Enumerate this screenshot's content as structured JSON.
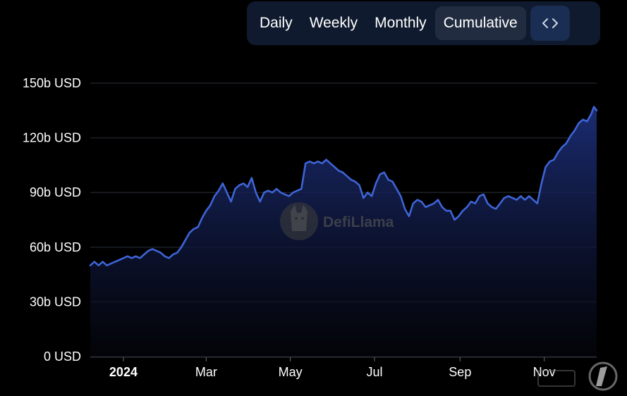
{
  "toolbar": {
    "buttons": [
      {
        "label": "Daily"
      },
      {
        "label": "Weekly"
      },
      {
        "label": "Monthly"
      },
      {
        "label": "Cumulative"
      }
    ],
    "active": "Cumulative",
    "embed_icon": "code-brackets-icon"
  },
  "watermark": {
    "text": "DefiLlama",
    "icon": "llama-logo-icon"
  },
  "colors": {
    "background": "#000000",
    "line": "#3e64d6",
    "fill_top": "#1c2e78",
    "grid": "#1c1f26"
  },
  "chart_data": {
    "type": "area",
    "title": "",
    "xlabel": "",
    "ylabel": "",
    "y_unit": "b USD",
    "ylim": [
      0,
      150
    ],
    "y_ticks": [
      {
        "value": 0,
        "label": "0 USD"
      },
      {
        "value": 30,
        "label": "30b USD"
      },
      {
        "value": 60,
        "label": "60b USD"
      },
      {
        "value": 90,
        "label": "90b USD"
      },
      {
        "value": 120,
        "label": "120b USD"
      },
      {
        "value": 150,
        "label": "150b USD"
      }
    ],
    "x_ticks": [
      {
        "date": "2024-01-01",
        "label": "2024",
        "bold": true
      },
      {
        "date": "2024-03-01",
        "label": "Mar",
        "bold": false
      },
      {
        "date": "2024-05-01",
        "label": "May",
        "bold": false
      },
      {
        "date": "2024-07-01",
        "label": "Jul",
        "bold": false
      },
      {
        "date": "2024-09-01",
        "label": "Sep",
        "bold": false
      },
      {
        "date": "2024-11-01",
        "label": "Nov",
        "bold": false
      }
    ],
    "xlim": [
      "2023-12-08",
      "2024-12-09"
    ],
    "grid": true,
    "legend": "none",
    "series": [
      {
        "points": [
          [
            "2023-12-08",
            50
          ],
          [
            "2023-12-11",
            52
          ],
          [
            "2023-12-14",
            50
          ],
          [
            "2023-12-17",
            52
          ],
          [
            "2023-12-20",
            50
          ],
          [
            "2023-12-23",
            51
          ],
          [
            "2023-12-26",
            52
          ],
          [
            "2023-12-29",
            53
          ],
          [
            "2024-01-01",
            54
          ],
          [
            "2024-01-04",
            55
          ],
          [
            "2024-01-07",
            54
          ],
          [
            "2024-01-10",
            55
          ],
          [
            "2024-01-13",
            54
          ],
          [
            "2024-01-16",
            56
          ],
          [
            "2024-01-19",
            58
          ],
          [
            "2024-01-22",
            59
          ],
          [
            "2024-01-25",
            58
          ],
          [
            "2024-01-28",
            57
          ],
          [
            "2024-01-31",
            55
          ],
          [
            "2024-02-03",
            54
          ],
          [
            "2024-02-06",
            56
          ],
          [
            "2024-02-09",
            57
          ],
          [
            "2024-02-12",
            60
          ],
          [
            "2024-02-15",
            64
          ],
          [
            "2024-02-18",
            68
          ],
          [
            "2024-02-21",
            70
          ],
          [
            "2024-02-24",
            71
          ],
          [
            "2024-02-27",
            76
          ],
          [
            "2024-03-01",
            80
          ],
          [
            "2024-03-04",
            83
          ],
          [
            "2024-03-07",
            88
          ],
          [
            "2024-03-10",
            91
          ],
          [
            "2024-03-13",
            95
          ],
          [
            "2024-03-16",
            90
          ],
          [
            "2024-03-19",
            85
          ],
          [
            "2024-03-22",
            92
          ],
          [
            "2024-03-25",
            94
          ],
          [
            "2024-03-28",
            95
          ],
          [
            "2024-03-31",
            93
          ],
          [
            "2024-04-03",
            98
          ],
          [
            "2024-04-06",
            90
          ],
          [
            "2024-04-09",
            85
          ],
          [
            "2024-04-12",
            90
          ],
          [
            "2024-04-15",
            91
          ],
          [
            "2024-04-18",
            90
          ],
          [
            "2024-04-21",
            92
          ],
          [
            "2024-04-24",
            90
          ],
          [
            "2024-04-27",
            89
          ],
          [
            "2024-04-30",
            88
          ],
          [
            "2024-05-03",
            90
          ],
          [
            "2024-05-06",
            91
          ],
          [
            "2024-05-09",
            92
          ],
          [
            "2024-05-12",
            106
          ],
          [
            "2024-05-15",
            107
          ],
          [
            "2024-05-18",
            106
          ],
          [
            "2024-05-21",
            107
          ],
          [
            "2024-05-24",
            106
          ],
          [
            "2024-05-27",
            108
          ],
          [
            "2024-05-30",
            106
          ],
          [
            "2024-06-02",
            104
          ],
          [
            "2024-06-05",
            102
          ],
          [
            "2024-06-08",
            101
          ],
          [
            "2024-06-11",
            99
          ],
          [
            "2024-06-14",
            97
          ],
          [
            "2024-06-17",
            96
          ],
          [
            "2024-06-20",
            94
          ],
          [
            "2024-06-23",
            87
          ],
          [
            "2024-06-26",
            90
          ],
          [
            "2024-06-29",
            88
          ],
          [
            "2024-07-02",
            95
          ],
          [
            "2024-07-05",
            100
          ],
          [
            "2024-07-08",
            101
          ],
          [
            "2024-07-11",
            97
          ],
          [
            "2024-07-14",
            96
          ],
          [
            "2024-07-17",
            92
          ],
          [
            "2024-07-20",
            88
          ],
          [
            "2024-07-23",
            81
          ],
          [
            "2024-07-26",
            77
          ],
          [
            "2024-07-29",
            84
          ],
          [
            "2024-08-01",
            86
          ],
          [
            "2024-08-04",
            85
          ],
          [
            "2024-08-07",
            82
          ],
          [
            "2024-08-10",
            83
          ],
          [
            "2024-08-13",
            84
          ],
          [
            "2024-08-16",
            86
          ],
          [
            "2024-08-19",
            82
          ],
          [
            "2024-08-22",
            80
          ],
          [
            "2024-08-25",
            80
          ],
          [
            "2024-08-28",
            75
          ],
          [
            "2024-08-31",
            77
          ],
          [
            "2024-09-03",
            80
          ],
          [
            "2024-09-06",
            82
          ],
          [
            "2024-09-09",
            85
          ],
          [
            "2024-09-12",
            84
          ],
          [
            "2024-09-15",
            88
          ],
          [
            "2024-09-18",
            89
          ],
          [
            "2024-09-21",
            84
          ],
          [
            "2024-09-24",
            82
          ],
          [
            "2024-09-27",
            81
          ],
          [
            "2024-09-30",
            84
          ],
          [
            "2024-10-03",
            87
          ],
          [
            "2024-10-06",
            88
          ],
          [
            "2024-10-09",
            87
          ],
          [
            "2024-10-12",
            86
          ],
          [
            "2024-10-15",
            88
          ],
          [
            "2024-10-18",
            86
          ],
          [
            "2024-10-21",
            88
          ],
          [
            "2024-10-24",
            86
          ],
          [
            "2024-10-27",
            84
          ],
          [
            "2024-10-30",
            95
          ],
          [
            "2024-11-02",
            104
          ],
          [
            "2024-11-05",
            107
          ],
          [
            "2024-11-08",
            108
          ],
          [
            "2024-11-11",
            112
          ],
          [
            "2024-11-14",
            115
          ],
          [
            "2024-11-17",
            117
          ],
          [
            "2024-11-20",
            121
          ],
          [
            "2024-11-23",
            124
          ],
          [
            "2024-11-26",
            128
          ],
          [
            "2024-11-29",
            130
          ],
          [
            "2024-12-02",
            129
          ],
          [
            "2024-12-05",
            133
          ],
          [
            "2024-12-07",
            137
          ],
          [
            "2024-12-09",
            135
          ]
        ]
      }
    ]
  }
}
